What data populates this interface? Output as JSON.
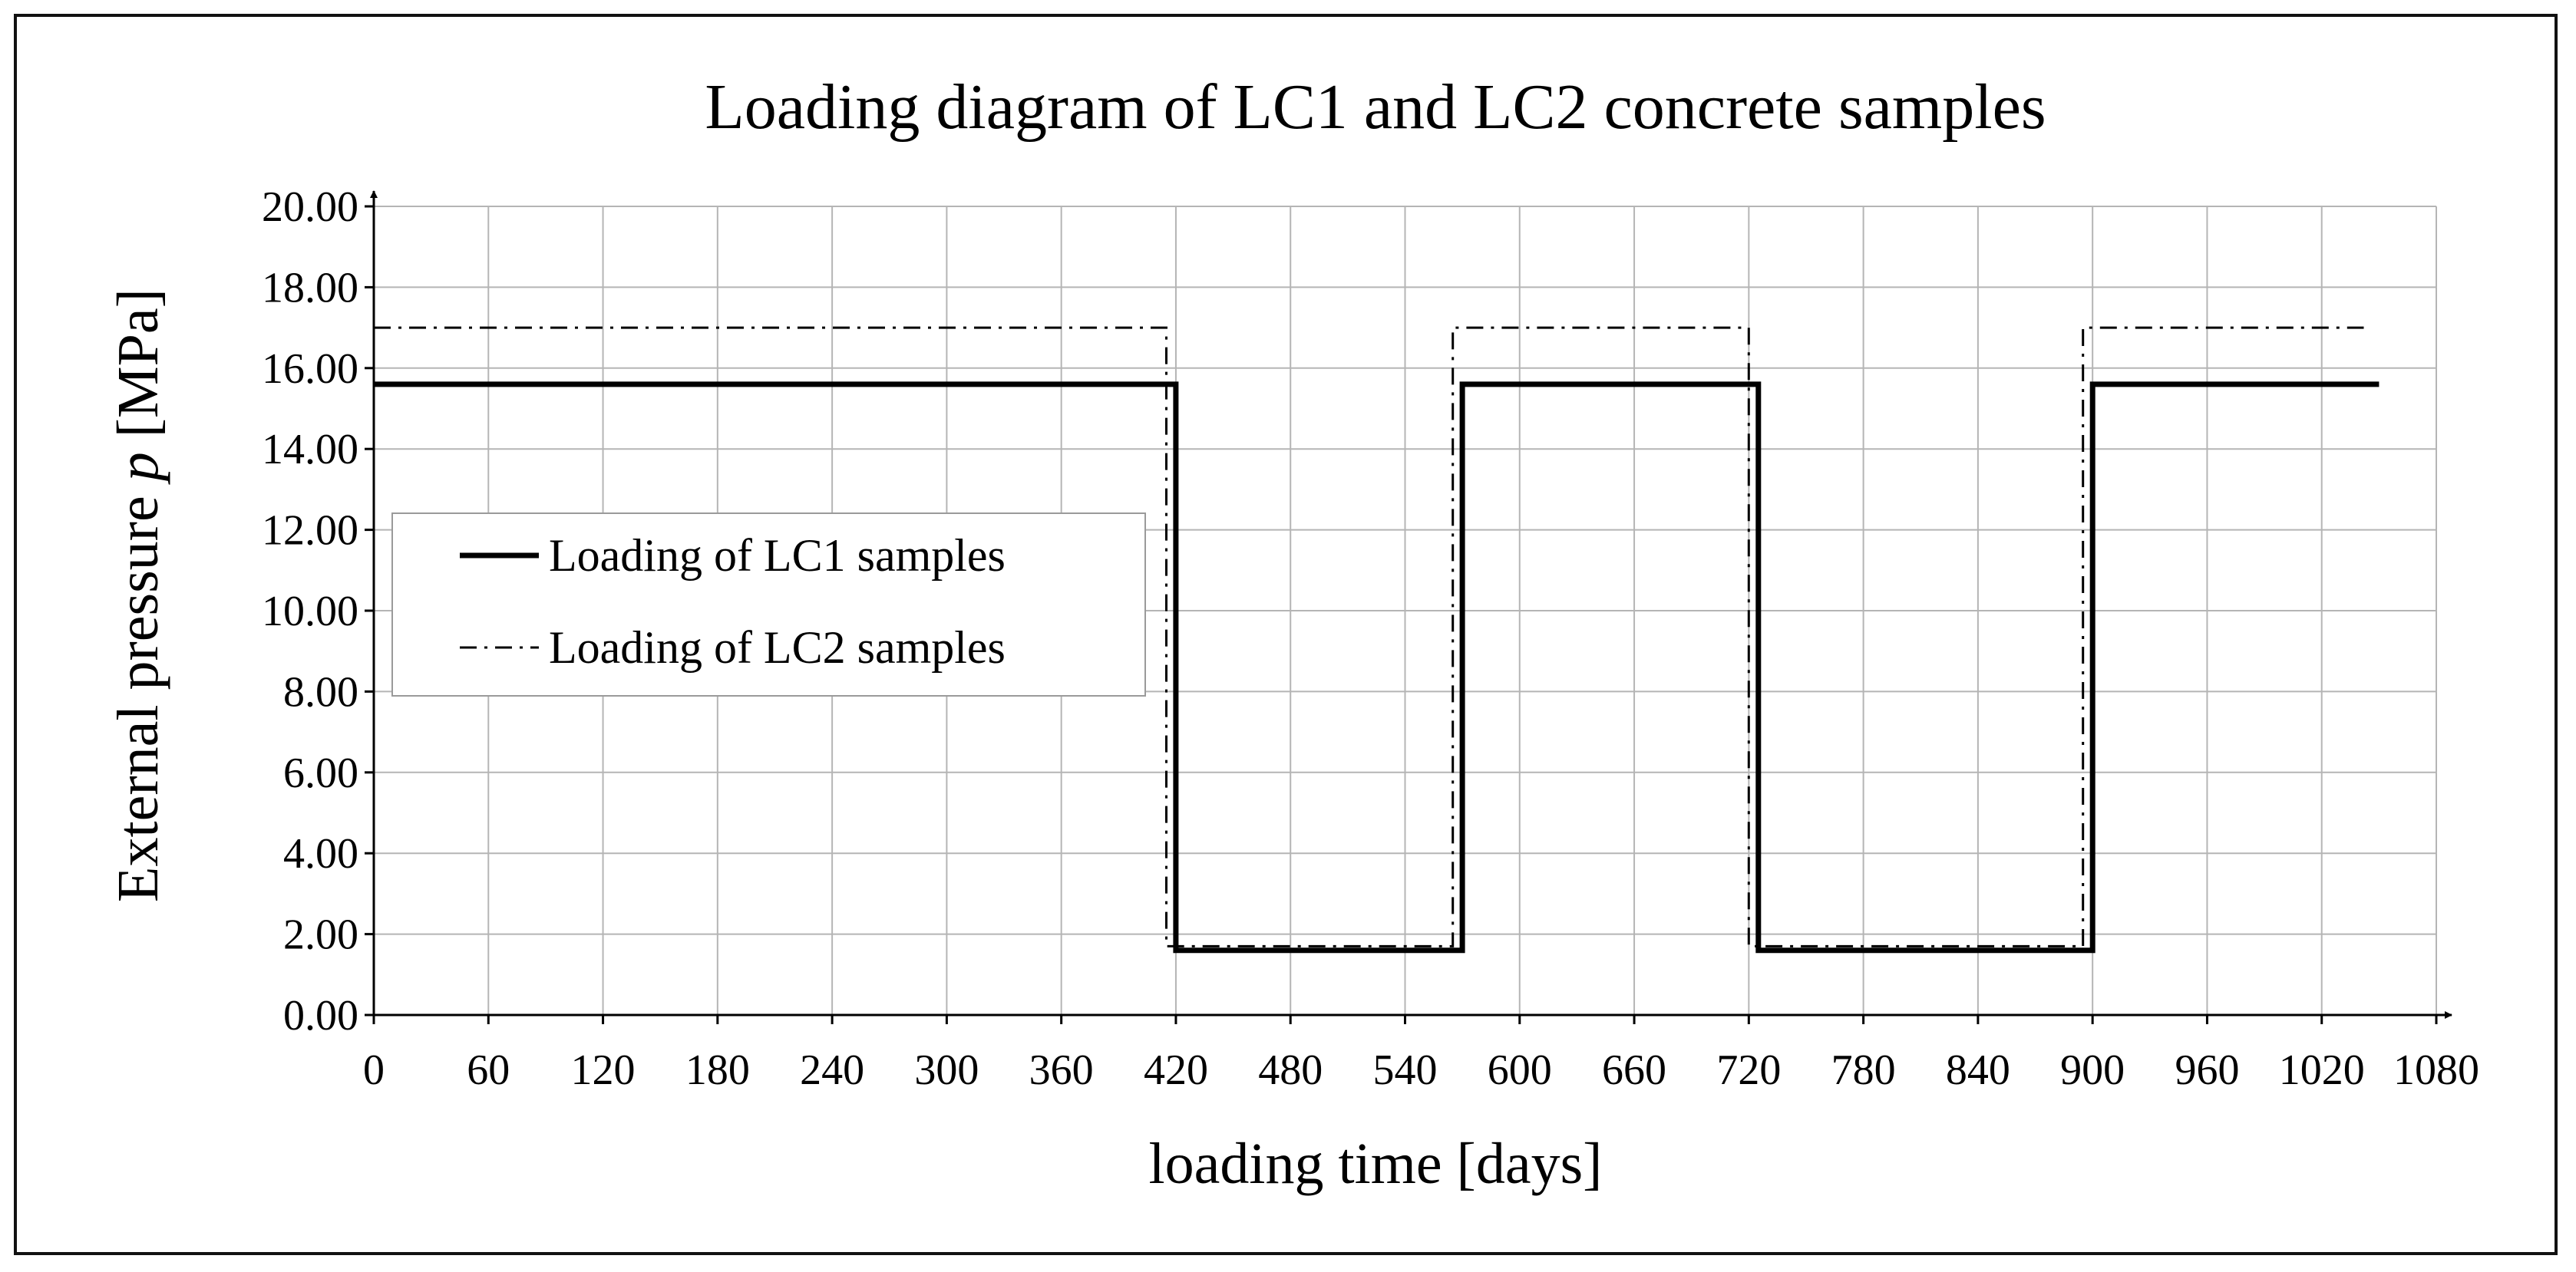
{
  "chart_data": {
    "type": "line",
    "title": "Loading diagram of LC1 and LC2 concrete samples",
    "xlabel": "loading time [days]",
    "ylabel_prefix": "External pressure ",
    "ylabel_symbol": "p",
    "ylabel_suffix": " [MPa]",
    "xlim": [
      0,
      1080
    ],
    "ylim": [
      0,
      20
    ],
    "x_ticks": [
      0,
      60,
      120,
      180,
      240,
      300,
      360,
      420,
      480,
      540,
      600,
      660,
      720,
      780,
      840,
      900,
      960,
      1020,
      1080
    ],
    "y_ticks": [
      0,
      2,
      4,
      6,
      8,
      10,
      12,
      14,
      16,
      18,
      20
    ],
    "x_tick_labels": [
      "0",
      "60",
      "120",
      "180",
      "240",
      "300",
      "360",
      "420",
      "480",
      "540",
      "600",
      "660",
      "720",
      "780",
      "840",
      "900",
      "960",
      "1020",
      "1080"
    ],
    "y_tick_labels": [
      "0.00",
      "2.00",
      "4.00",
      "6.00",
      "8.00",
      "10.00",
      "12.00",
      "14.00",
      "16.00",
      "18.00",
      "20.00"
    ],
    "grid": true,
    "legend_position": "left-middle",
    "series": [
      {
        "name": "Loading of LC1 samples",
        "style": "solid",
        "color": "#000000",
        "x": [
          0,
          420,
          420,
          570,
          570,
          725,
          725,
          900,
          900,
          1050
        ],
        "y": [
          15.6,
          15.6,
          1.6,
          1.6,
          15.6,
          15.6,
          1.6,
          1.6,
          15.6,
          15.6
        ]
      },
      {
        "name": "Loading of LC2 samples",
        "style": "dash-dot",
        "color": "#000000",
        "x": [
          0,
          415,
          415,
          565,
          565,
          720,
          720,
          895,
          895,
          1042
        ],
        "y": [
          17.0,
          17.0,
          1.7,
          1.7,
          17.0,
          17.0,
          1.7,
          1.7,
          17.0,
          17.0
        ]
      }
    ]
  }
}
